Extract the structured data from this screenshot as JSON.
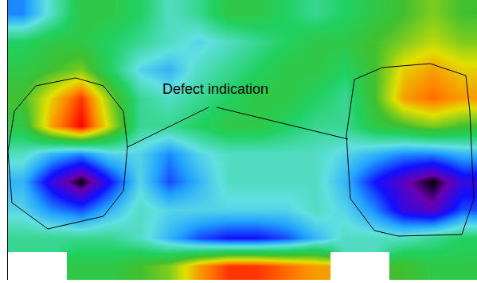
{
  "chart_data": {
    "type": "heatmap",
    "z": [
      [
        3,
        4.5,
        6,
        6,
        5.5,
        4.5,
        5,
        6,
        6,
        5.5,
        5,
        5.5,
        6,
        6.5,
        7,
        6.5
      ],
      [
        5.5,
        6,
        6,
        5.5,
        5,
        4.5,
        4,
        4.5,
        5,
        5.5,
        6,
        6,
        6.5,
        7,
        7.5,
        7
      ],
      [
        6,
        6.5,
        7,
        5.5,
        4,
        3.5,
        4.5,
        5,
        5.5,
        6,
        6,
        5.5,
        6.5,
        8,
        8.5,
        8
      ],
      [
        6.5,
        8,
        9.5,
        7,
        5,
        4.5,
        5,
        5.5,
        6,
        6,
        5.5,
        5,
        6.5,
        8.5,
        9,
        8.5
      ],
      [
        6,
        8.5,
        10,
        7.5,
        5,
        5,
        5.5,
        6,
        6,
        5.5,
        5,
        5,
        6,
        6.5,
        7,
        6.5
      ],
      [
        4.5,
        3.5,
        3,
        4,
        4,
        3,
        4,
        4.5,
        4.5,
        4.5,
        4.5,
        4,
        3.5,
        3,
        3,
        3.5
      ],
      [
        3.5,
        1.5,
        0,
        2,
        4,
        2.5,
        3.5,
        4.5,
        4.5,
        4.5,
        4.5,
        3.5,
        2,
        1,
        0,
        1.5
      ],
      [
        4,
        3,
        2.5,
        3.5,
        4.5,
        4,
        4,
        4,
        4,
        4,
        4.5,
        4,
        3,
        1.5,
        1,
        2.5
      ],
      [
        5,
        5,
        5,
        5,
        4.5,
        3.5,
        2.5,
        2,
        2,
        2.5,
        3.5,
        4.5,
        4.5,
        4.5,
        5,
        5.5
      ],
      [
        null,
        null,
        6,
        6,
        6.5,
        7,
        8.5,
        9.5,
        9.5,
        9,
        8.5,
        null,
        null,
        6.5,
        6,
        6
      ]
    ],
    "zlim": [
      0,
      10
    ],
    "annotations": [
      {
        "text": "Defect indication"
      }
    ],
    "tick_labels": false
  }
}
